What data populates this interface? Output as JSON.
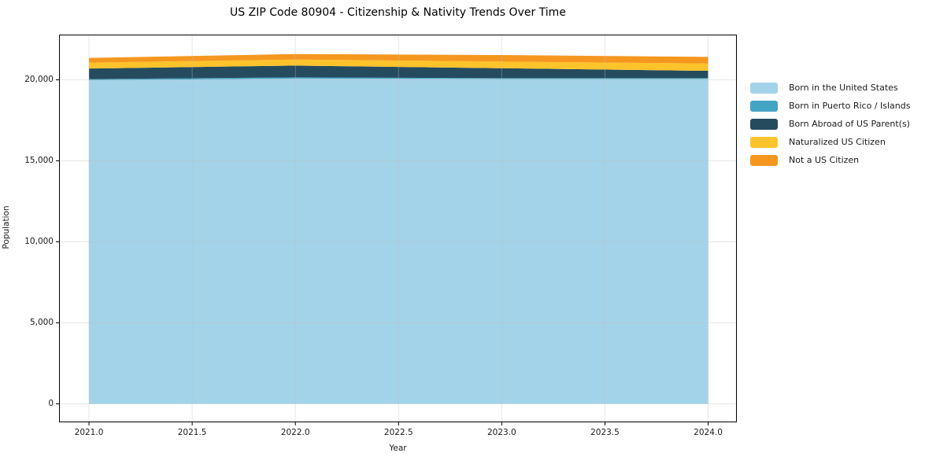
{
  "chart_data": {
    "type": "area",
    "stacked": true,
    "title": "US ZIP Code 80904 - Citizenship & Nativity Trends Over Time",
    "xlabel": "Year",
    "ylabel": "Population",
    "x": [
      2021,
      2022,
      2023,
      2024
    ],
    "series": [
      {
        "name": "Born in the United States",
        "color": "#a3d3e8",
        "values": [
          19975,
          20080,
          20055,
          20055
        ]
      },
      {
        "name": "Born in Puerto Rico / Islands",
        "color": "#44a4c4",
        "values": [
          70,
          70,
          50,
          50
        ]
      },
      {
        "name": "Born Abroad of US Parent(s)",
        "color": "#254b5e",
        "values": [
          650,
          730,
          610,
          450
        ]
      },
      {
        "name": "Naturalized US Citizen",
        "color": "#fdc32b",
        "values": [
          365,
          370,
          410,
          455
        ]
      },
      {
        "name": "Not a US Citizen",
        "color": "#f5971f",
        "values": [
          290,
          340,
          405,
          405
        ]
      }
    ],
    "xlim": [
      2020.855,
      2024.139
    ],
    "ylim": [
      -1141,
      22791
    ],
    "xticks": {
      "values": [
        2021.0,
        2021.5,
        2022.0,
        2022.5,
        2023.0,
        2023.5,
        2024.0
      ],
      "labels": [
        "2021.0",
        "2021.5",
        "2022.0",
        "2022.5",
        "2023.0",
        "2023.5",
        "2024.0"
      ]
    },
    "yticks": {
      "values": [
        0,
        5000,
        10000,
        15000,
        20000
      ],
      "labels": [
        "0",
        "5,000",
        "10,000",
        "15,000",
        "20,000"
      ]
    },
    "grid": true,
    "grid_color": "rgba(190,190,190,0.38)",
    "frame_color": "#000000",
    "legend_position": "right outside"
  }
}
